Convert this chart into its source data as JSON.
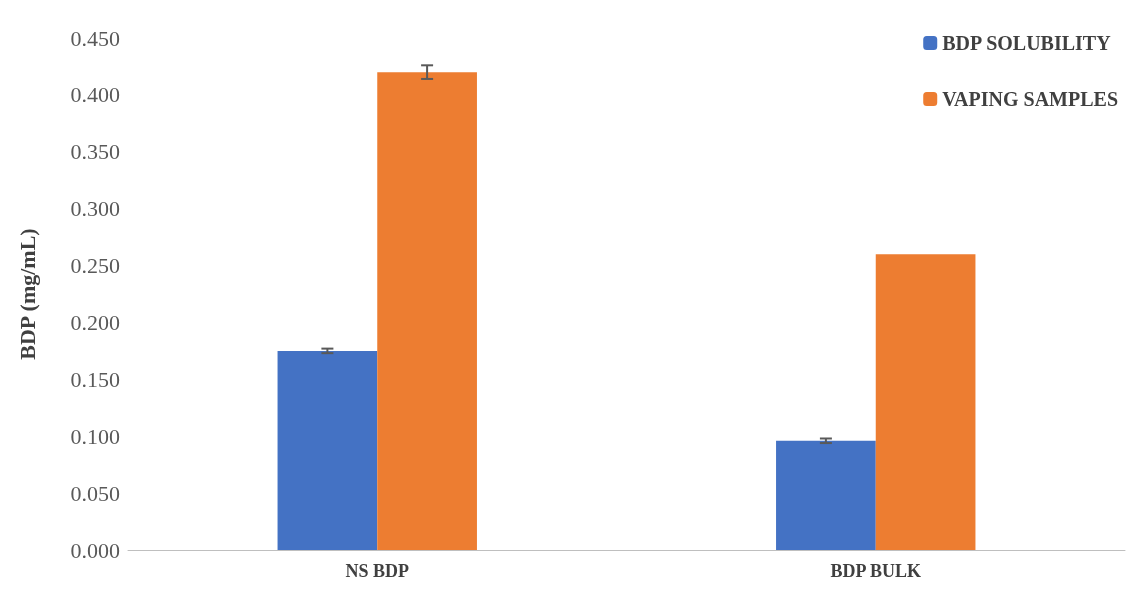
{
  "chart_data": {
    "type": "bar",
    "ylabel": "BDP (mg/mL)",
    "categories": [
      "NS BDP",
      "BDP BULK"
    ],
    "series": [
      {
        "name": "BDP SOLUBILITY",
        "color": "#4472c4",
        "values": [
          0.175,
          0.096
        ],
        "errors": [
          0.002,
          0.002
        ]
      },
      {
        "name": "VAPING SAMPLES",
        "color": "#ed7d31",
        "values": [
          0.42,
          0.26
        ],
        "errors": [
          0.006,
          null
        ]
      }
    ],
    "ylim": [
      0,
      0.45
    ],
    "yticks": [
      {
        "value": 0,
        "label": "0.000"
      },
      {
        "value": 0.05,
        "label": "0.050"
      },
      {
        "value": 0.1,
        "label": "0.100"
      },
      {
        "value": 0.15,
        "label": "0.150"
      },
      {
        "value": 0.2,
        "label": "0.200"
      },
      {
        "value": 0.25,
        "label": "0.250"
      },
      {
        "value": 0.3,
        "label": "0.300"
      },
      {
        "value": 0.35,
        "label": "0.350"
      },
      {
        "value": 0.4,
        "label": "0.400"
      },
      {
        "value": 0.45,
        "label": "0.450"
      }
    ],
    "grid": false,
    "legend": "top right"
  }
}
